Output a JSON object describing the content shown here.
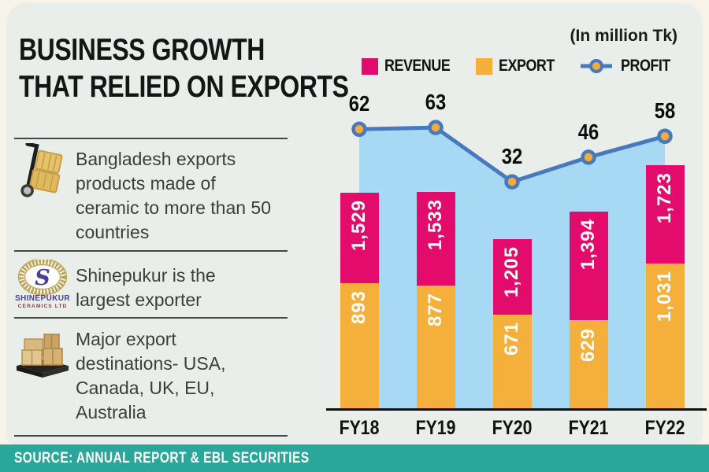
{
  "header": {
    "title_line1": "BUSINESS GROWTH",
    "title_line2": "THAT RELIED ON EXPORTS"
  },
  "left_panel": {
    "bullets": [
      {
        "icon": "handtruck-boxes-icon",
        "text": "Bangladesh exports products made of ceramic to more than 50 countries"
      },
      {
        "icon": "shinepukur-logo",
        "text": "Shinepukur is the largest exporter"
      },
      {
        "icon": "pallet-boxes-icon",
        "text": "Major export destinations- USA, Canada, UK, EU, Australia"
      }
    ],
    "shinepukur_logo": {
      "monogram": "S",
      "line1": "SHINEPUKUR",
      "line2": "CERAMICS LTD"
    }
  },
  "source_bar": {
    "text": "SOURCE: ANNUAL REPORT & EBL SECURITIES",
    "background": "#2aa79a"
  },
  "chart_data": {
    "type": "combo: stacked bar + line with area",
    "unit_note": "(In million Tk)",
    "categories": [
      "FY18",
      "FY19",
      "FY20",
      "FY21",
      "FY22"
    ],
    "series": [
      {
        "name": "REVENUE",
        "type": "bar",
        "stack_position": "top",
        "color": "#e30b6c",
        "values": [
          1529,
          1533,
          1205,
          1394,
          1723
        ]
      },
      {
        "name": "EXPORT",
        "type": "bar",
        "stack_position": "bottom",
        "color": "#f4b03a",
        "values": [
          893,
          877,
          671,
          629,
          1031
        ]
      },
      {
        "name": "PROFIT",
        "type": "line",
        "color": "#4879bf",
        "marker_color": "#f3ab3a",
        "area_fill": "#a7d8f4",
        "values": [
          62,
          63,
          32,
          46,
          58
        ]
      }
    ],
    "legend_position": "top-right",
    "value_format": "thousands-comma",
    "grid": "off",
    "ylim_bars": [
      0,
      1800
    ]
  }
}
